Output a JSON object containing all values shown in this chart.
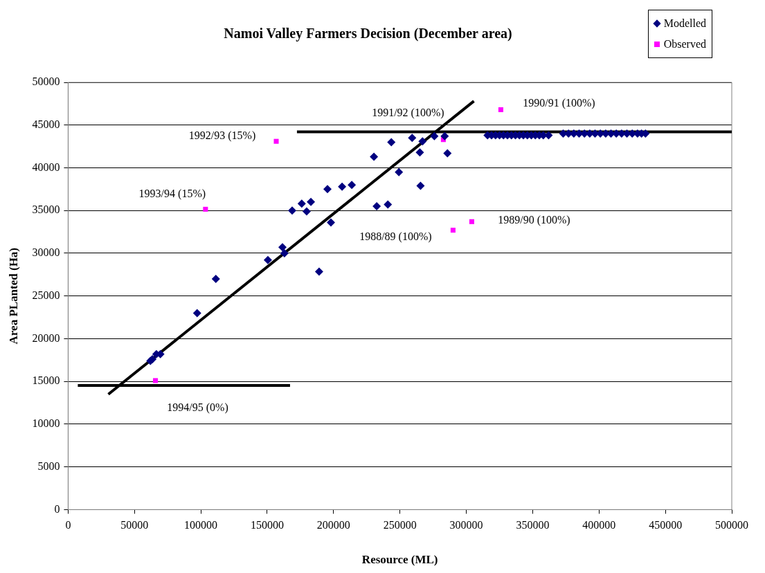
{
  "chart_data": {
    "type": "scatter",
    "title": "Namoi Valley Farmers Decision (December area)",
    "xlabel": "Resource (ML)",
    "ylabel": "Area PLanted (Ha)",
    "xlim": [
      0,
      500000
    ],
    "xticks": [
      0,
      50000,
      100000,
      150000,
      200000,
      250000,
      300000,
      350000,
      400000,
      450000,
      500000
    ],
    "ylim": [
      0,
      50000
    ],
    "yticks": [
      0,
      5000,
      10000,
      15000,
      20000,
      25000,
      30000,
      35000,
      40000,
      45000,
      50000
    ],
    "grid": "y",
    "legend": "top right",
    "series": [
      {
        "name": "Modelled",
        "marker": "diamond",
        "color": "#000080",
        "x": [
          62000,
          63500,
          66500,
          69500,
          97200,
          111300,
          150500,
          161500,
          163000,
          168800,
          176000,
          179700,
          182900,
          189100,
          195400,
          198000,
          206400,
          213700,
          230400,
          232500,
          240900,
          243500,
          249200,
          259200,
          265000,
          265500,
          267000,
          275900,
          283700,
          285800,
          316000,
          319000,
          322000,
          325000,
          328000,
          331000,
          334000,
          337000,
          340000,
          343000,
          346000,
          349000,
          352000,
          355000,
          358000,
          362000,
          373000,
          377000,
          381000,
          385000,
          389000,
          393000,
          397000,
          401000,
          405000,
          409000,
          413000,
          417000,
          421000,
          425000,
          429000,
          432000,
          435000
        ],
        "values": [
          17400,
          17600,
          18200,
          18200,
          23000,
          27000,
          29200,
          30700,
          30000,
          35000,
          35800,
          34900,
          36000,
          27850,
          37500,
          33600,
          37800,
          38000,
          41300,
          35500,
          35700,
          43000,
          39500,
          43500,
          41800,
          37900,
          43100,
          43700,
          43700,
          41700,
          43800,
          43800,
          43800,
          43800,
          43800,
          43800,
          43800,
          43800,
          43800,
          43800,
          43800,
          43800,
          43800,
          43800,
          43800,
          43800,
          44000,
          44000,
          44000,
          44000,
          44000,
          44000,
          44000,
          44000,
          44000,
          44000,
          44000,
          44000,
          44000,
          44000,
          44000,
          44000,
          44000
        ]
      },
      {
        "name": "Observed",
        "marker": "square",
        "color": "#ff00ff",
        "x": [
          65800,
          103500,
          156800,
          282700,
          326000,
          290000,
          304100
        ],
        "values": [
          15100,
          35150,
          43100,
          43300,
          46800,
          32700,
          33700
        ]
      },
      {
        "type": "line",
        "marker": "none",
        "color": "#000000",
        "x": [
          30300,
          305700
        ],
        "values": [
          13500,
          47800
        ]
      },
      {
        "type": "line",
        "marker": "none",
        "color": "#000000",
        "x": [
          7300,
          167200
        ],
        "values": [
          14530,
          14530
        ]
      },
      {
        "type": "line",
        "marker": "none",
        "color": "#000000",
        "x": [
          172400,
          500000
        ],
        "values": [
          44200,
          44200
        ]
      }
    ],
    "annotations": [
      {
        "text": "1992/93 (15%)",
        "x": 156800,
        "y": 43100
      },
      {
        "text": "1993/94 (15%)",
        "x": 103500,
        "y": 35150
      },
      {
        "text": "1991/92 (100%)",
        "x": 282700,
        "y": 43300
      },
      {
        "text": "1990/91 (100%)",
        "x": 326000,
        "y": 46800
      },
      {
        "text": "1989/90 (100%)",
        "x": 304100,
        "y": 33700
      },
      {
        "text": "1988/89 (100%)",
        "x": 290000,
        "y": 32700
      },
      {
        "text": "1994/95 (0%)",
        "x": 65800,
        "y": 15100
      }
    ]
  }
}
